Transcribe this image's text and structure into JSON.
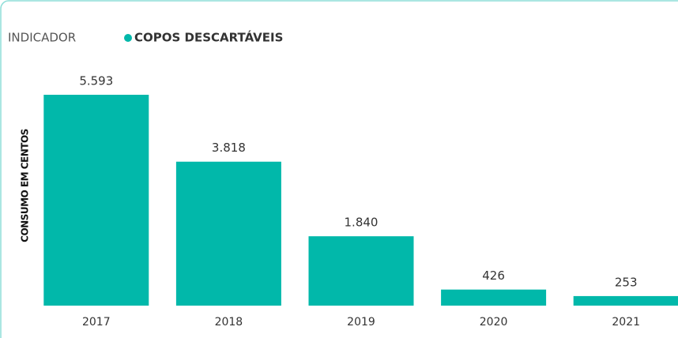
{
  "chart_data": {
    "type": "bar",
    "legend_title": "INDICADOR",
    "series": [
      {
        "name": "COPOS DESCARTÁVEIS",
        "color": "#01b8aa",
        "values": [
          5593,
          3818,
          1840,
          426,
          253
        ],
        "value_labels": [
          "5.593",
          "3.818",
          "1.840",
          "426",
          "253"
        ]
      }
    ],
    "categories": [
      "2017",
      "2018",
      "2019",
      "2020",
      "2021"
    ],
    "ylabel": "CONSUMO EM CENTOS",
    "ylim": [
      0,
      5593
    ]
  }
}
